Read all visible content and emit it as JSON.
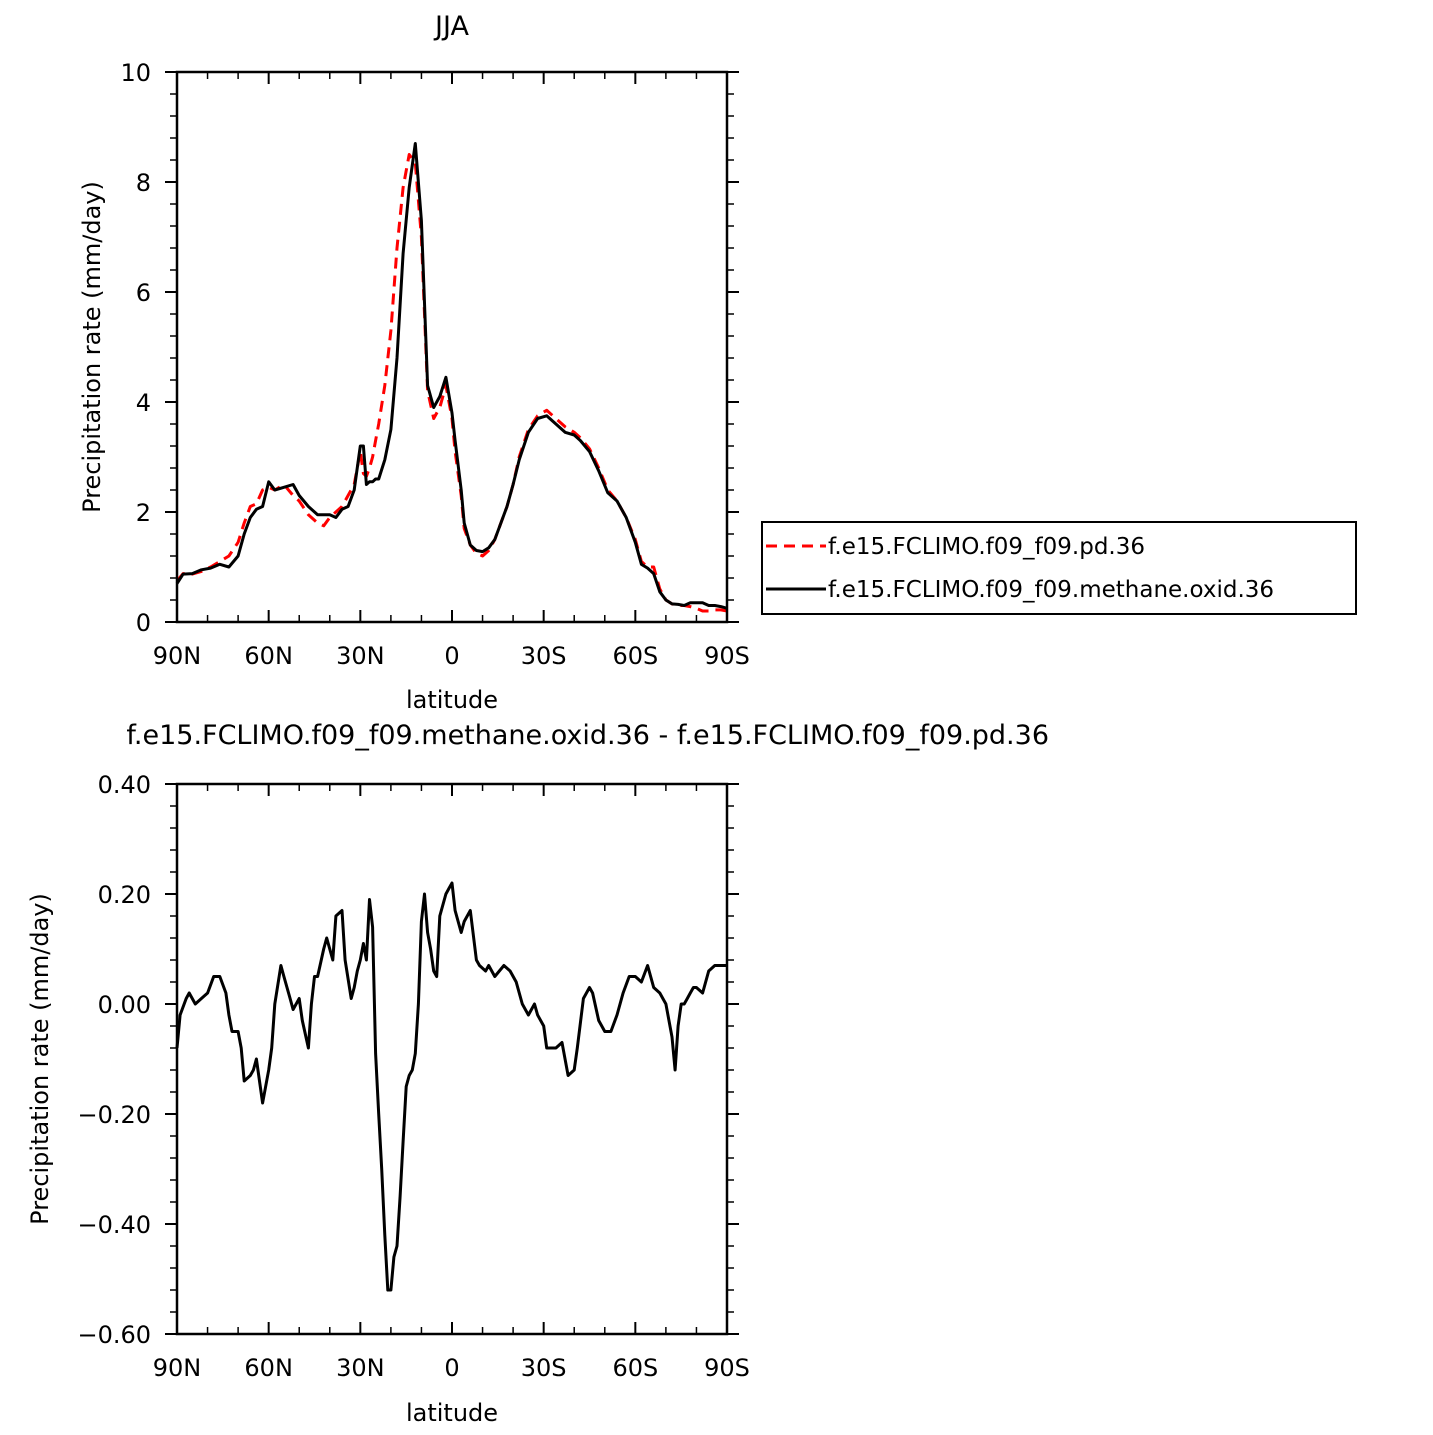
{
  "chart_data": [
    {
      "type": "line",
      "title": "JJA",
      "xlabel": "latitude",
      "ylabel": "Precipitation rate (mm/day)",
      "xlim": [
        90,
        -90
      ],
      "ylim": [
        0,
        10
      ],
      "x_ticks": [
        90,
        60,
        30,
        0,
        -30,
        -60,
        -90
      ],
      "x_tick_labels": [
        "90N",
        "60N",
        "30N",
        "0",
        "30S",
        "60S",
        "90S"
      ],
      "y_ticks": [
        0,
        2,
        4,
        6,
        8,
        10
      ],
      "y_tick_labels": [
        "0",
        "2",
        "4",
        "6",
        "8",
        "10"
      ],
      "legend_position": "right",
      "series": [
        {
          "name": "f.e15.FCLIMO.f09_f09.pd.36",
          "color": "#ff0000",
          "style": "dashed",
          "x": [
            90,
            88,
            85,
            82,
            79,
            76,
            73,
            70,
            68,
            66,
            64,
            62,
            60,
            58,
            55,
            52,
            50,
            47,
            44,
            42,
            40,
            38,
            36,
            34,
            32,
            30,
            29,
            28,
            27,
            26,
            25,
            24,
            22,
            20,
            18,
            16,
            14,
            12,
            10,
            8,
            6,
            4,
            2,
            0,
            -1,
            -3,
            -4,
            -6,
            -8,
            -10,
            -12,
            -14,
            -16,
            -18,
            -20,
            -22,
            -25,
            -28,
            -31,
            -34,
            -37,
            -40,
            -42,
            -45,
            -48,
            -51,
            -54,
            -57,
            -60,
            -62,
            -64,
            -66,
            -68,
            -70,
            -72,
            -74,
            -76,
            -78,
            -80,
            -82,
            -84,
            -86,
            -88,
            -90
          ],
          "y": [
            0.75,
            0.88,
            0.87,
            0.92,
            1.0,
            1.1,
            1.2,
            1.45,
            1.8,
            2.1,
            2.15,
            2.4,
            2.45,
            2.4,
            2.5,
            2.3,
            2.2,
            1.95,
            1.8,
            1.75,
            1.9,
            2.0,
            2.1,
            2.3,
            2.5,
            3.1,
            2.7,
            2.65,
            2.8,
            3.0,
            3.3,
            3.6,
            4.3,
            5.3,
            6.8,
            7.9,
            8.5,
            8.35,
            7.0,
            4.2,
            3.7,
            3.9,
            4.3,
            3.7,
            3.1,
            2.3,
            1.7,
            1.4,
            1.25,
            1.2,
            1.3,
            1.5,
            1.8,
            2.1,
            2.5,
            3.0,
            3.5,
            3.75,
            3.85,
            3.7,
            3.55,
            3.45,
            3.35,
            3.15,
            2.8,
            2.4,
            2.2,
            1.9,
            1.5,
            1.1,
            1.0,
            1.0,
            0.6,
            0.4,
            0.33,
            0.3,
            0.3,
            0.28,
            0.25,
            0.2,
            0.2,
            0.22,
            0.22,
            0.2
          ]
        },
        {
          "name": "f.e15.FCLIMO.f09_f09.methane.oxid.36",
          "color": "#000000",
          "style": "solid",
          "x": [
            90,
            88,
            85,
            82,
            79,
            76,
            73,
            70,
            68,
            66,
            64,
            62,
            60,
            58,
            55,
            52,
            50,
            47,
            44,
            42,
            40,
            38,
            36,
            34,
            32,
            30,
            29,
            28,
            27,
            26,
            25,
            24,
            22,
            20,
            18,
            16,
            14,
            12,
            10,
            8,
            6,
            4,
            2,
            0,
            -1,
            -3,
            -4,
            -6,
            -8,
            -10,
            -12,
            -14,
            -16,
            -18,
            -20,
            -22,
            -25,
            -28,
            -31,
            -34,
            -37,
            -40,
            -42,
            -45,
            -48,
            -51,
            -54,
            -57,
            -60,
            -62,
            -64,
            -66,
            -68,
            -70,
            -72,
            -74,
            -76,
            -78,
            -80,
            -82,
            -84,
            -86,
            -88,
            -90
          ],
          "y": [
            0.7,
            0.87,
            0.88,
            0.95,
            0.98,
            1.05,
            1.0,
            1.2,
            1.6,
            1.9,
            2.05,
            2.1,
            2.55,
            2.4,
            2.45,
            2.5,
            2.3,
            2.1,
            1.95,
            1.95,
            1.95,
            1.9,
            2.05,
            2.1,
            2.4,
            3.2,
            3.2,
            2.5,
            2.55,
            2.55,
            2.6,
            2.6,
            2.95,
            3.5,
            4.8,
            6.7,
            7.9,
            8.7,
            7.3,
            4.3,
            3.9,
            4.1,
            4.45,
            3.8,
            3.3,
            2.4,
            1.8,
            1.4,
            1.3,
            1.28,
            1.35,
            1.5,
            1.8,
            2.1,
            2.5,
            2.95,
            3.45,
            3.7,
            3.75,
            3.6,
            3.45,
            3.4,
            3.3,
            3.1,
            2.75,
            2.35,
            2.2,
            1.9,
            1.45,
            1.05,
            0.98,
            0.88,
            0.55,
            0.4,
            0.33,
            0.32,
            0.3,
            0.35,
            0.35,
            0.35,
            0.3,
            0.3,
            0.28,
            0.25
          ]
        }
      ]
    },
    {
      "type": "line",
      "title": "f.e15.FCLIMO.f09_f09.methane.oxid.36 - f.e15.FCLIMO.f09_f09.pd.36",
      "xlabel": "latitude",
      "ylabel": "Precipitation rate (mm/day)",
      "xlim": [
        90,
        -90
      ],
      "ylim": [
        -0.6,
        0.4
      ],
      "x_ticks": [
        90,
        60,
        30,
        0,
        -30,
        -60,
        -90
      ],
      "x_tick_labels": [
        "90N",
        "60N",
        "30N",
        "0",
        "30S",
        "60S",
        "90S"
      ],
      "y_ticks": [
        0.4,
        0.2,
        0.0,
        -0.2,
        -0.4,
        -0.6
      ],
      "y_tick_labels": [
        "0.40",
        "0.20",
        "0.00",
        "-0.20",
        "-0.40",
        "-0.60"
      ],
      "series": [
        {
          "color": "#000000",
          "style": "solid",
          "x": [
            90,
            89,
            87,
            86,
            84,
            82,
            80,
            78,
            76,
            74,
            73,
            72,
            70,
            69,
            68,
            66,
            65,
            64,
            62,
            60,
            59,
            58,
            56,
            55,
            54,
            53,
            52,
            50,
            49,
            47,
            46,
            45,
            44,
            42,
            41,
            39,
            38,
            36,
            35,
            33,
            32,
            31,
            30,
            29,
            28,
            27,
            26,
            25,
            24,
            23,
            22,
            21,
            20,
            19,
            18,
            17,
            16,
            15,
            14,
            13,
            12,
            11,
            10,
            9,
            8,
            7,
            6,
            5,
            4,
            2,
            1,
            0,
            -1,
            -3,
            -4,
            -6,
            -8,
            -9,
            -11,
            -12,
            -14,
            -17,
            -19,
            -21,
            -23,
            -25,
            -27,
            -28,
            -30,
            -31,
            -33,
            -34,
            -36,
            -38,
            -40,
            -41,
            -43,
            -45,
            -46,
            -48,
            -50,
            -52,
            -54,
            -56,
            -58,
            -60,
            -62,
            -64,
            -66,
            -68,
            -70,
            -72,
            -73,
            -74,
            -75,
            -76,
            -77,
            -78,
            -79,
            -80,
            -82,
            -84,
            -86,
            -88,
            -90
          ],
          "y": [
            -0.08,
            -0.02,
            0.01,
            0.02,
            0.0,
            0.01,
            0.02,
            0.05,
            0.05,
            0.02,
            -0.02,
            -0.05,
            -0.05,
            -0.08,
            -0.14,
            -0.13,
            -0.12,
            -0.1,
            -0.18,
            -0.12,
            -0.08,
            0.0,
            0.07,
            0.05,
            0.03,
            0.01,
            -0.01,
            0.01,
            -0.03,
            -0.08,
            0.0,
            0.05,
            0.05,
            0.1,
            0.12,
            0.08,
            0.16,
            0.17,
            0.08,
            0.01,
            0.03,
            0.06,
            0.08,
            0.11,
            0.08,
            0.19,
            0.14,
            -0.09,
            -0.2,
            -0.3,
            -0.42,
            -0.52,
            -0.52,
            -0.46,
            -0.44,
            -0.35,
            -0.25,
            -0.15,
            -0.13,
            -0.12,
            -0.09,
            0.0,
            0.15,
            0.2,
            0.13,
            0.1,
            0.06,
            0.05,
            0.16,
            0.2,
            0.21,
            0.22,
            0.17,
            0.13,
            0.15,
            0.17,
            0.08,
            0.07,
            0.06,
            0.07,
            0.05,
            0.07,
            0.06,
            0.04,
            0.0,
            -0.02,
            0.0,
            -0.02,
            -0.04,
            -0.08,
            -0.08,
            -0.08,
            -0.07,
            -0.13,
            -0.12,
            -0.08,
            0.01,
            0.03,
            0.02,
            -0.03,
            -0.05,
            -0.05,
            -0.02,
            0.02,
            0.05,
            0.05,
            0.04,
            0.07,
            0.03,
            0.02,
            0.0,
            -0.06,
            -0.12,
            -0.04,
            0.0,
            0.0,
            0.01,
            0.02,
            0.03,
            0.03,
            0.02,
            0.06,
            0.07,
            0.07,
            0.07
          ]
        }
      ]
    }
  ]
}
